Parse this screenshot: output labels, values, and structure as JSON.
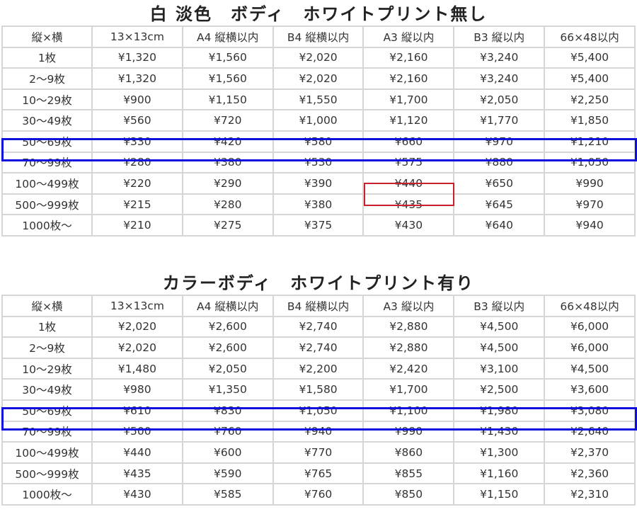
{
  "tables": [
    {
      "title": "白 淡色　ボディ　ホワイトプリント無し",
      "headers": [
        "縦×横",
        "13×13cm",
        "A4 縦横以内",
        "B4 縦横以内",
        "A3 縦以内",
        "B3 縦以内",
        "66×48以内"
      ],
      "rows": [
        [
          "1枚",
          "¥1,320",
          "¥1,560",
          "¥2,020",
          "¥2,160",
          "¥3,240",
          "¥5,400"
        ],
        [
          "2～9枚",
          "¥1,320",
          "¥1,560",
          "¥2,020",
          "¥2,160",
          "¥3,240",
          "¥5,400"
        ],
        [
          "10～29枚",
          "¥900",
          "¥1,150",
          "¥1,550",
          "¥1,700",
          "¥2,050",
          "¥2,250"
        ],
        [
          "30～49枚",
          "¥560",
          "¥720",
          "¥1,000",
          "¥1,120",
          "¥1,770",
          "¥1,850"
        ],
        [
          "50～69枚",
          "¥330",
          "¥420",
          "¥580",
          "¥660",
          "¥970",
          "¥1,210"
        ],
        [
          "70～99枚",
          "¥280",
          "¥380",
          "¥530",
          "¥575",
          "¥880",
          "¥1,050"
        ],
        [
          "100～499枚",
          "¥220",
          "¥290",
          "¥390",
          "¥440",
          "¥650",
          "¥990"
        ],
        [
          "500～999枚",
          "¥215",
          "¥280",
          "¥380",
          "¥435",
          "¥645",
          "¥970"
        ],
        [
          "1000枚～",
          "¥210",
          "¥275",
          "¥375",
          "¥430",
          "¥640",
          "¥940"
        ]
      ],
      "highlight_row": "50～69枚",
      "highlight_cell": "¥440",
      "highlight_row_color": "#1010dd",
      "highlight_cell_color": "#cc1f2c"
    },
    {
      "title": "カラーボディ　ホワイトプリント有り",
      "headers": [
        "縦×横",
        "13×13cm",
        "A4 縦横以内",
        "B4 縦横以内",
        "A3 縦以内",
        "B3 縦以内",
        "66×48以内"
      ],
      "rows": [
        [
          "1枚",
          "¥2,020",
          "¥2,600",
          "¥2,740",
          "¥2,880",
          "¥4,500",
          "¥6,000"
        ],
        [
          "2～9枚",
          "¥2,020",
          "¥2,600",
          "¥2,740",
          "¥2,880",
          "¥4,500",
          "¥6,000"
        ],
        [
          "10～29枚",
          "¥1,480",
          "¥2,050",
          "¥2,200",
          "¥2,420",
          "¥3,100",
          "¥4,500"
        ],
        [
          "30～49枚",
          "¥980",
          "¥1,350",
          "¥1,580",
          "¥1,700",
          "¥2,500",
          "¥3,600"
        ],
        [
          "50～69枚",
          "¥610",
          "¥830",
          "¥1,050",
          "¥1,100",
          "¥1,980",
          "¥3,080"
        ],
        [
          "70～99枚",
          "¥500",
          "¥760",
          "¥940",
          "¥990",
          "¥1,430",
          "¥2,640"
        ],
        [
          "100～499枚",
          "¥440",
          "¥600",
          "¥770",
          "¥860",
          "¥1,300",
          "¥2,370"
        ],
        [
          "500～999枚",
          "¥435",
          "¥590",
          "¥765",
          "¥855",
          "¥1,160",
          "¥2,360"
        ],
        [
          "1000枚～",
          "¥430",
          "¥585",
          "¥760",
          "¥850",
          "¥1,150",
          "¥2,310"
        ]
      ],
      "highlight_row": "50～69枚",
      "highlight_row_color": "#1010dd"
    }
  ]
}
